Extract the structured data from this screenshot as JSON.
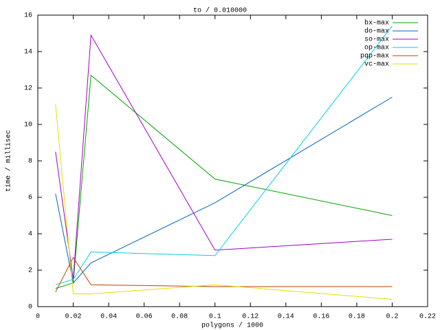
{
  "chart_data": {
    "type": "line",
    "title": "to / 0.010000",
    "x_label": "polygons / 1000",
    "y_label": "time / millisec",
    "x": [
      0.01,
      0.02,
      0.03,
      0.1,
      0.2
    ],
    "series": [
      {
        "name": "bx-max",
        "color": "#00a000",
        "values": [
          1.0,
          1.3,
          12.7,
          7.0,
          5.0
        ]
      },
      {
        "name": "do-max",
        "color": "#0060c0",
        "values": [
          6.2,
          1.3,
          2.4,
          5.7,
          11.5
        ]
      },
      {
        "name": "so-max",
        "color": "#a000c0",
        "values": [
          8.5,
          1.5,
          14.9,
          3.1,
          3.7
        ]
      },
      {
        "name": "op-max",
        "color": "#00d0e0",
        "values": [
          1.2,
          1.5,
          3.0,
          2.8,
          15.4
        ]
      },
      {
        "name": "pqp-max",
        "color": "#c04000",
        "values": [
          0.8,
          2.7,
          1.2,
          1.1,
          1.1
        ]
      },
      {
        "name": "vc-max",
        "color": "#e0e000",
        "values": [
          11.1,
          0.7,
          0.7,
          1.2,
          0.4
        ]
      }
    ],
    "xlim": [
      0,
      0.22
    ],
    "xticks": [
      0,
      0.02,
      0.04,
      0.06,
      0.08,
      0.1,
      0.12,
      0.14,
      0.16,
      0.18,
      0.2,
      0.22
    ],
    "ylim": [
      0,
      16
    ],
    "yticks": [
      0,
      2,
      4,
      6,
      8,
      10,
      12,
      14,
      16
    ],
    "grid": false,
    "legend": "top-right"
  }
}
